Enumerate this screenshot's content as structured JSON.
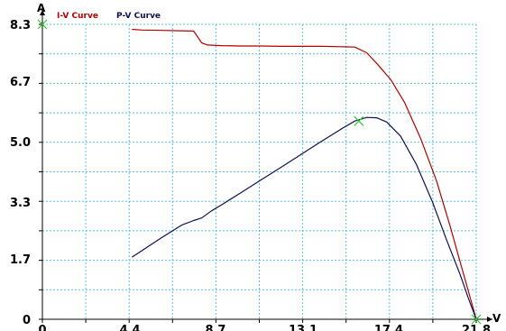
{
  "chart_data": {
    "type": "line",
    "ylabel": "A",
    "xlabel": "V",
    "xlim": [
      0,
      21.8
    ],
    "ylim": [
      0,
      8.3
    ],
    "grid": true,
    "legend_position": "top-left",
    "x_ticks": [
      0,
      4.4,
      8.7,
      13.1,
      17.4,
      21.8
    ],
    "x_tick_labels": [
      "0",
      "4.4",
      "8.7",
      "13.1",
      "17.4",
      "21.8"
    ],
    "y_ticks": [
      0,
      1.7,
      3.3,
      5.0,
      6.7,
      8.3
    ],
    "y_tick_labels": [
      "0",
      "1.7",
      "3.3",
      "5.0",
      "6.7",
      "8.3"
    ],
    "series": [
      {
        "name": "I-V Curve",
        "color": "#b00000",
        "x": [
          4.5,
          5.0,
          6.0,
          7.0,
          7.6,
          7.8,
          8.0,
          8.3,
          9.0,
          10.0,
          11.0,
          12.0,
          13.0,
          14.0,
          15.0,
          15.7,
          16.3,
          16.8,
          17.5,
          18.2,
          19.0,
          19.8,
          20.5,
          21.0,
          21.4,
          21.8
        ],
        "y": [
          8.16,
          8.14,
          8.13,
          8.12,
          8.11,
          7.95,
          7.78,
          7.72,
          7.7,
          7.69,
          7.69,
          7.68,
          7.68,
          7.68,
          7.67,
          7.66,
          7.5,
          7.2,
          6.75,
          6.1,
          5.1,
          3.9,
          2.6,
          1.6,
          0.8,
          0.0
        ]
      },
      {
        "name": "P-V Curve",
        "color": "#101050",
        "x": [
          4.5,
          6.0,
          7.0,
          7.6,
          8.0,
          8.5,
          9.0,
          10.0,
          11.0,
          12.0,
          13.0,
          14.0,
          15.0,
          15.7,
          16.3,
          16.8,
          17.3,
          18.0,
          18.8,
          19.6,
          20.3,
          21.0,
          21.4,
          21.8
        ],
        "y": [
          1.75,
          2.3,
          2.65,
          2.78,
          2.85,
          3.05,
          3.22,
          3.57,
          3.93,
          4.28,
          4.64,
          5.0,
          5.35,
          5.58,
          5.68,
          5.67,
          5.55,
          5.15,
          4.35,
          3.3,
          2.25,
          1.25,
          0.6,
          0.0
        ]
      }
    ],
    "markers": [
      {
        "x": 0,
        "y": 8.3
      },
      {
        "x": 15.9,
        "y": 5.58
      },
      {
        "x": 21.8,
        "y": 0
      }
    ],
    "marker_color": "#30c030",
    "grid_color": "#55c0e0",
    "axis_color": "#000000"
  }
}
